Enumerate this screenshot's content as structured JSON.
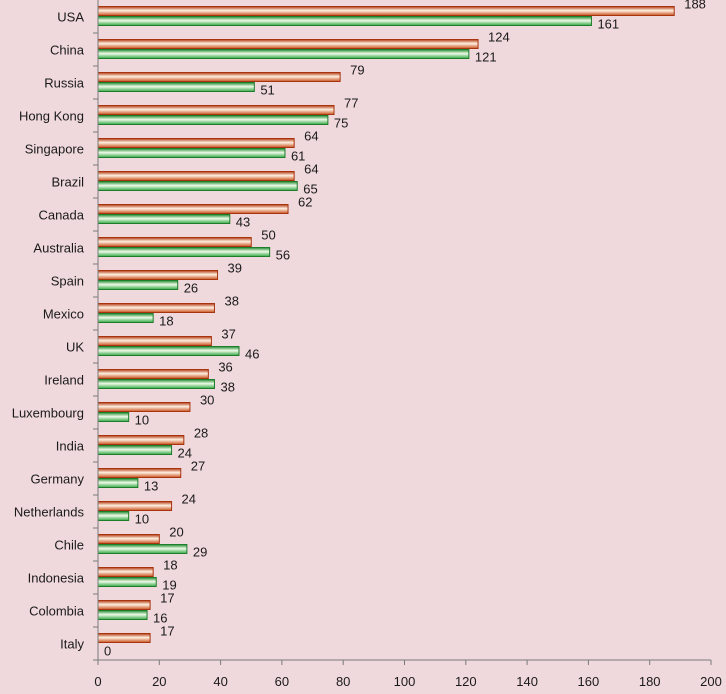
{
  "chart_data": {
    "type": "bar",
    "orientation": "horizontal",
    "categories": [
      "USA",
      "China",
      "Russia",
      "Hong Kong",
      "Singapore",
      "Brazil",
      "Canada",
      "Australia",
      "Spain",
      "Mexico",
      "UK",
      "Ireland",
      "Luxembourg",
      "India",
      "Germany",
      "Netherlands",
      "Chile",
      "Indonesia",
      "Colombia",
      "Italy"
    ],
    "series": [
      {
        "color": "#e07a3e",
        "values": [
          188,
          124,
          79,
          77,
          64,
          64,
          62,
          50,
          39,
          38,
          37,
          36,
          30,
          28,
          27,
          24,
          20,
          18,
          17,
          17
        ]
      },
      {
        "color": "#4fc35a",
        "values": [
          161,
          121,
          51,
          75,
          61,
          65,
          43,
          56,
          26,
          18,
          46,
          38,
          10,
          24,
          13,
          10,
          29,
          19,
          16,
          0
        ]
      }
    ],
    "xlim": [
      0,
      200
    ],
    "xticks": [
      0,
      20,
      40,
      60,
      80,
      100,
      120,
      140,
      160,
      180,
      200
    ],
    "grid": false,
    "legend": "none",
    "background": "#f0d9dc"
  }
}
